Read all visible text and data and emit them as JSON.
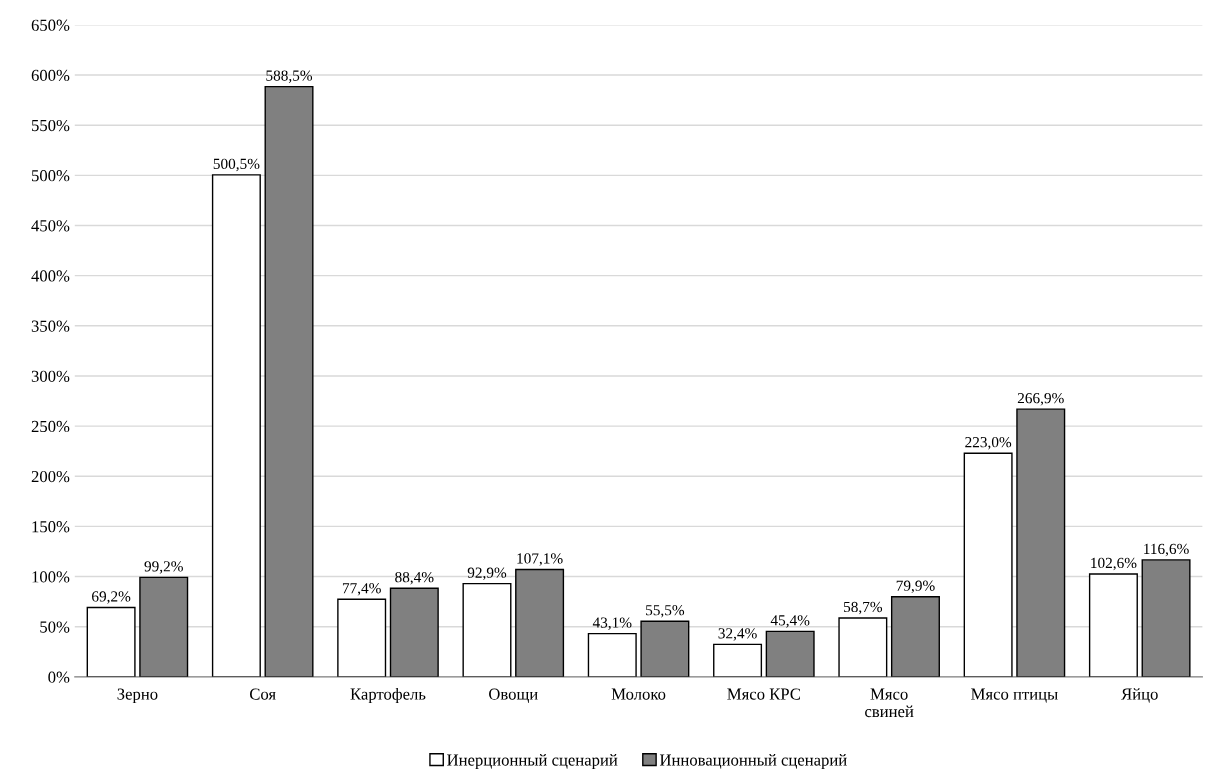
{
  "chart_data": {
    "type": "bar",
    "categories": [
      "Зерно",
      "Соя",
      "Картофель",
      "Овощи",
      "Молоко",
      "Мясо КРС",
      "Мясо\nсвиней",
      "Мясо птицы",
      "Яйцо"
    ],
    "series": [
      {
        "name": "Инерционный сценарий",
        "color": "#ffffff",
        "values": [
          69.2,
          500.5,
          77.4,
          92.9,
          43.1,
          32.4,
          58.7,
          223.0,
          102.6
        ],
        "value_labels": [
          "69,2%",
          "500,5%",
          "77,4%",
          "92,9%",
          "43,1%",
          "32,4%",
          "58,7%",
          "223,0%",
          "102,6%"
        ]
      },
      {
        "name": "Инновационный сценарий",
        "color": "#808080",
        "values": [
          99.2,
          588.5,
          88.4,
          107.1,
          55.5,
          45.4,
          79.9,
          266.9,
          116.6
        ],
        "value_labels": [
          "99,2%",
          "588,5%",
          "88,4%",
          "107,1%",
          "55,5%",
          "45,4%",
          "79,9%",
          "266,9%",
          "116,6%"
        ]
      }
    ],
    "ylim": [
      0,
      650
    ],
    "yticks": [
      {
        "value": 0,
        "label": "0%"
      },
      {
        "value": 50,
        "label": "50%"
      },
      {
        "value": 100,
        "label": "100%"
      },
      {
        "value": 150,
        "label": "150%"
      },
      {
        "value": 200,
        "label": "200%"
      },
      {
        "value": 250,
        "label": "250%"
      },
      {
        "value": 300,
        "label": "300%"
      },
      {
        "value": 350,
        "label": "350%"
      },
      {
        "value": 400,
        "label": "400%"
      },
      {
        "value": 450,
        "label": "450%"
      },
      {
        "value": 500,
        "label": "500%"
      },
      {
        "value": 550,
        "label": "550%"
      },
      {
        "value": 600,
        "label": "600%"
      },
      {
        "value": 650,
        "label": "650%"
      }
    ],
    "grid": "y",
    "legend": "bottom"
  }
}
